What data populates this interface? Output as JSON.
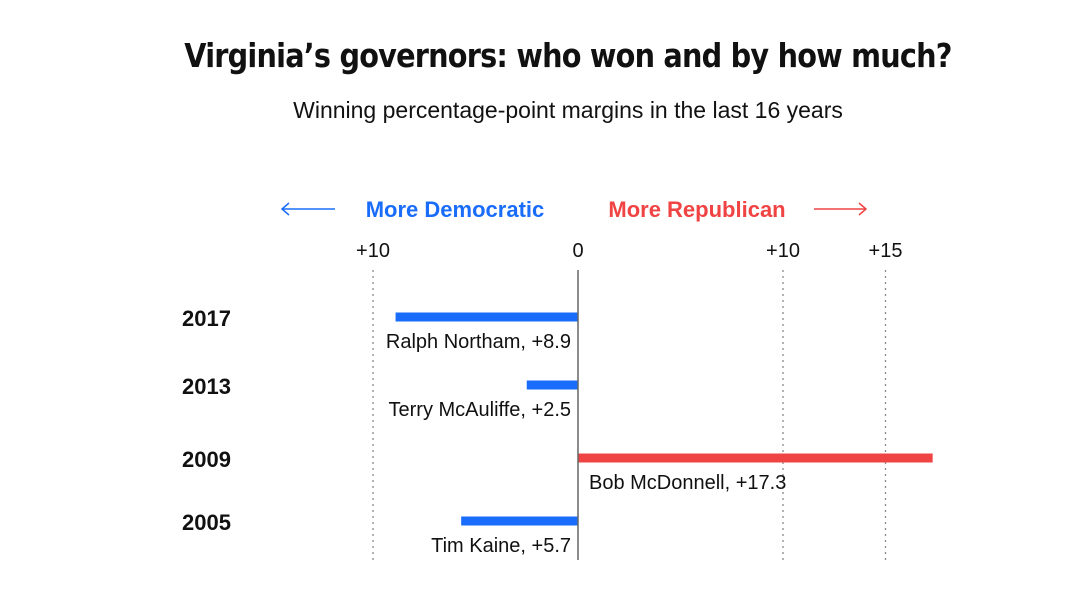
{
  "title": "Virginia’s governors: who won and by how much?",
  "subtitle": "Winning percentage-point margins in the last 16 years",
  "colors": {
    "democratic": "#1a6dfa",
    "republican": "#f04343"
  },
  "chart_data": {
    "type": "bar",
    "orientation": "horizontal-diverging",
    "direction_labels": {
      "left": "More Democratic",
      "right": "More Republican"
    },
    "x_ticks": [
      {
        "value": -10,
        "label": "+10"
      },
      {
        "value": 0,
        "label": "0"
      },
      {
        "value": 10,
        "label": "+10"
      },
      {
        "value": 15,
        "label": "+15"
      }
    ],
    "xlim": [
      -10,
      17.3
    ],
    "grid": true,
    "categories": [
      "2017",
      "2013",
      "2009",
      "2005"
    ],
    "bars": [
      {
        "year": "2017",
        "winner": "Ralph Northam",
        "party": "democratic",
        "margin": 8.9,
        "label": "Ralph Northam, +8.9"
      },
      {
        "year": "2013",
        "winner": "Terry McAuliffe",
        "party": "democratic",
        "margin": 2.5,
        "label": "Terry McAuliffe, +2.5"
      },
      {
        "year": "2009",
        "winner": "Bob McDonnell",
        "party": "republican",
        "margin": 17.3,
        "label": "Bob McDonnell, +17.3"
      },
      {
        "year": "2005",
        "winner": "Tim Kaine",
        "party": "democratic",
        "margin": 5.7,
        "label": "Tim Kaine, +5.7"
      }
    ]
  }
}
